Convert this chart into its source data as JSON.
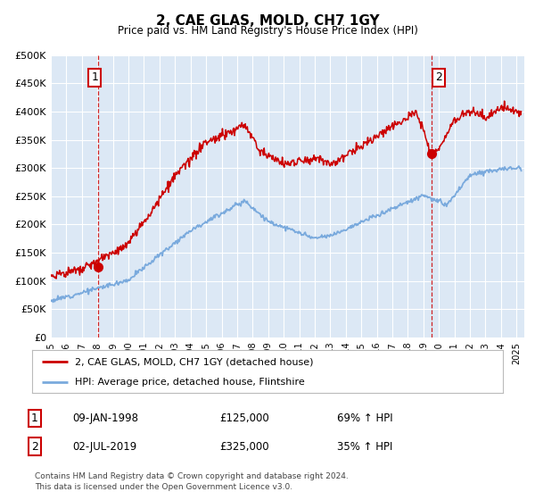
{
  "title": "2, CAE GLAS, MOLD, CH7 1GY",
  "subtitle": "Price paid vs. HM Land Registry's House Price Index (HPI)",
  "ylabel_ticks": [
    "£0",
    "£50K",
    "£100K",
    "£150K",
    "£200K",
    "£250K",
    "£300K",
    "£350K",
    "£400K",
    "£450K",
    "£500K"
  ],
  "ytick_values": [
    0,
    50000,
    100000,
    150000,
    200000,
    250000,
    300000,
    350000,
    400000,
    450000,
    500000
  ],
  "ylim": [
    0,
    500000
  ],
  "xlim_start": 1995.0,
  "xlim_end": 2025.5,
  "hpi_color": "#7aaadd",
  "price_color": "#cc0000",
  "dashed_color": "#cc0000",
  "bg_plot": "#dce8f5",
  "bg_figure": "#ffffff",
  "legend_label_red": "2, CAE GLAS, MOLD, CH7 1GY (detached house)",
  "legend_label_blue": "HPI: Average price, detached house, Flintshire",
  "annotation1_num": "1",
  "annotation1_date": "09-JAN-1998",
  "annotation1_price": "£125,000",
  "annotation1_hpi": "69% ↑ HPI",
  "annotation2_num": "2",
  "annotation2_date": "02-JUL-2019",
  "annotation2_price": "£325,000",
  "annotation2_hpi": "35% ↑ HPI",
  "sale1_x": 1998.03,
  "sale1_y": 125000,
  "sale2_x": 2019.5,
  "sale2_y": 325000,
  "footer": "Contains HM Land Registry data © Crown copyright and database right 2024.\nThis data is licensed under the Open Government Licence v3.0."
}
